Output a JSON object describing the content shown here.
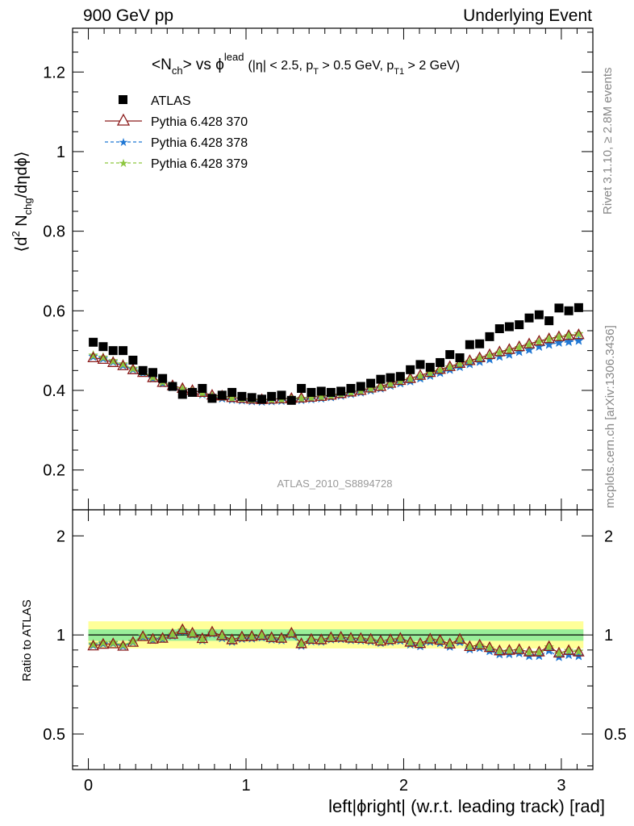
{
  "header": {
    "left": "900 GeV pp",
    "right": "Underlying Event"
  },
  "side_labels": {
    "rivet": "Rivet 3.1.10, ≥ 2.8M events",
    "mcplots": "mcplots.cern.ch [arXiv:1306.3436]"
  },
  "chart_data": [
    {
      "type": "scatter",
      "panel": "main",
      "title_main": "<N",
      "title_main_sub": "ch",
      "title_vs": "> vs ϕ",
      "title_sup": "lead",
      "title_cuts": "(|η| < 2.5, p",
      "title_cuts_sub1": "T",
      "title_cuts_mid": " > 0.5 GeV, p",
      "title_cuts_sub2": "T1",
      "title_cuts_end": " > 2 GeV)",
      "ylabel_a": "⟨d",
      "ylabel_sup": "2",
      "ylabel_b": " N",
      "ylabel_sub": "chg",
      "ylabel_c": "/dηdϕ⟩",
      "watermark": "ATLAS_2010_S8894728",
      "xlim": [
        -0.1,
        3.2
      ],
      "ylim": [
        0.1,
        1.31
      ],
      "yticks": [
        0.2,
        0.4,
        0.6,
        0.8,
        1,
        1.2
      ],
      "ytick_labels": [
        "0.2",
        "0.4",
        "0.6",
        "0.8",
        "1",
        "1.2"
      ],
      "legend_position": "top-left",
      "series": [
        {
          "name": "ATLAS",
          "marker": "square",
          "color": "#000000",
          "x": [
            0.031,
            0.094,
            0.157,
            0.22,
            0.283,
            0.346,
            0.409,
            0.471,
            0.534,
            0.597,
            0.66,
            0.723,
            0.785,
            0.848,
            0.911,
            0.974,
            1.037,
            1.1,
            1.162,
            1.225,
            1.288,
            1.351,
            1.414,
            1.477,
            1.539,
            1.602,
            1.665,
            1.728,
            1.791,
            1.854,
            1.916,
            1.979,
            2.042,
            2.105,
            2.168,
            2.231,
            2.293,
            2.356,
            2.419,
            2.482,
            2.545,
            2.608,
            2.67,
            2.733,
            2.796,
            2.859,
            2.922,
            2.985,
            3.047,
            3.11
          ],
          "y": [
            0.521,
            0.51,
            0.5,
            0.5,
            0.476,
            0.45,
            0.445,
            0.43,
            0.41,
            0.39,
            0.395,
            0.405,
            0.38,
            0.388,
            0.395,
            0.385,
            0.382,
            0.378,
            0.385,
            0.388,
            0.375,
            0.405,
            0.395,
            0.398,
            0.395,
            0.398,
            0.405,
            0.41,
            0.418,
            0.428,
            0.432,
            0.435,
            0.452,
            0.465,
            0.458,
            0.47,
            0.49,
            0.482,
            0.515,
            0.517,
            0.535,
            0.555,
            0.56,
            0.565,
            0.582,
            0.59,
            0.575,
            0.607,
            0.6,
            0.608
          ]
        },
        {
          "name": "Pythia 6.428 370",
          "marker": "triangle-open",
          "color": "#8b1a1a",
          "x": [
            0.031,
            0.094,
            0.157,
            0.22,
            0.283,
            0.346,
            0.409,
            0.471,
            0.534,
            0.597,
            0.66,
            0.723,
            0.785,
            0.848,
            0.911,
            0.974,
            1.037,
            1.1,
            1.162,
            1.225,
            1.288,
            1.351,
            1.414,
            1.477,
            1.539,
            1.602,
            1.665,
            1.728,
            1.791,
            1.854,
            1.916,
            1.979,
            2.042,
            2.105,
            2.168,
            2.231,
            2.293,
            2.356,
            2.419,
            2.482,
            2.545,
            2.608,
            2.67,
            2.733,
            2.796,
            2.859,
            2.922,
            2.985,
            3.047,
            3.11
          ],
          "y": [
            0.482,
            0.478,
            0.47,
            0.462,
            0.452,
            0.445,
            0.432,
            0.42,
            0.412,
            0.405,
            0.4,
            0.395,
            0.388,
            0.386,
            0.382,
            0.38,
            0.378,
            0.377,
            0.378,
            0.379,
            0.38,
            0.381,
            0.383,
            0.385,
            0.388,
            0.392,
            0.396,
            0.4,
            0.406,
            0.41,
            0.418,
            0.425,
            0.43,
            0.438,
            0.445,
            0.453,
            0.46,
            0.468,
            0.475,
            0.482,
            0.49,
            0.497,
            0.503,
            0.51,
            0.517,
            0.524,
            0.53,
            0.535,
            0.538,
            0.54
          ]
        },
        {
          "name": "Pythia 6.428 378",
          "marker": "star",
          "color": "#1f77d4",
          "x": [
            0.031,
            0.094,
            0.157,
            0.22,
            0.283,
            0.346,
            0.409,
            0.471,
            0.534,
            0.597,
            0.66,
            0.723,
            0.785,
            0.848,
            0.911,
            0.974,
            1.037,
            1.1,
            1.162,
            1.225,
            1.288,
            1.351,
            1.414,
            1.477,
            1.539,
            1.602,
            1.665,
            1.728,
            1.791,
            1.854,
            1.916,
            1.979,
            2.042,
            2.105,
            2.168,
            2.231,
            2.293,
            2.356,
            2.419,
            2.482,
            2.545,
            2.608,
            2.67,
            2.733,
            2.796,
            2.859,
            2.922,
            2.985,
            3.047,
            3.11
          ],
          "y": [
            0.485,
            0.48,
            0.472,
            0.463,
            0.453,
            0.444,
            0.43,
            0.418,
            0.408,
            0.4,
            0.395,
            0.39,
            0.383,
            0.38,
            0.377,
            0.375,
            0.373,
            0.372,
            0.373,
            0.374,
            0.375,
            0.376,
            0.378,
            0.38,
            0.383,
            0.387,
            0.391,
            0.395,
            0.4,
            0.405,
            0.412,
            0.418,
            0.423,
            0.43,
            0.437,
            0.444,
            0.452,
            0.459,
            0.466,
            0.472,
            0.478,
            0.485,
            0.49,
            0.497,
            0.502,
            0.51,
            0.515,
            0.52,
            0.522,
            0.525
          ]
        },
        {
          "name": "Pythia 6.428 379",
          "marker": "star",
          "color": "#8dc63f",
          "x": [
            0.031,
            0.094,
            0.157,
            0.22,
            0.283,
            0.346,
            0.409,
            0.471,
            0.534,
            0.597,
            0.66,
            0.723,
            0.785,
            0.848,
            0.911,
            0.974,
            1.037,
            1.1,
            1.162,
            1.225,
            1.288,
            1.351,
            1.414,
            1.477,
            1.539,
            1.602,
            1.665,
            1.728,
            1.791,
            1.854,
            1.916,
            1.979,
            2.042,
            2.105,
            2.168,
            2.231,
            2.293,
            2.356,
            2.419,
            2.482,
            2.545,
            2.608,
            2.67,
            2.733,
            2.796,
            2.859,
            2.922,
            2.985,
            3.047,
            3.11
          ],
          "y": [
            0.488,
            0.483,
            0.474,
            0.466,
            0.455,
            0.447,
            0.433,
            0.421,
            0.411,
            0.403,
            0.397,
            0.392,
            0.385,
            0.383,
            0.38,
            0.378,
            0.376,
            0.375,
            0.376,
            0.377,
            0.378,
            0.379,
            0.381,
            0.383,
            0.386,
            0.39,
            0.394,
            0.398,
            0.403,
            0.408,
            0.415,
            0.422,
            0.428,
            0.435,
            0.442,
            0.45,
            0.458,
            0.465,
            0.472,
            0.48,
            0.487,
            0.494,
            0.5,
            0.507,
            0.514,
            0.521,
            0.528,
            0.533,
            0.537,
            0.542
          ]
        }
      ]
    },
    {
      "type": "scatter",
      "panel": "ratio",
      "ylabel": "Ratio to ATLAS",
      "xlabel": "left|ϕright| (w.r.t. leading track) [rad]",
      "xlim": [
        -0.1,
        3.2
      ],
      "ylim": [
        0.39,
        2.4
      ],
      "log_y": true,
      "xticks": [
        0,
        1,
        2,
        3
      ],
      "xtick_labels": [
        "0",
        "1",
        "2",
        "3"
      ],
      "yticks": [
        0.5,
        1,
        2
      ],
      "ytick_labels": [
        "0.5",
        "1",
        "2"
      ],
      "band_inner": [
        0.96,
        1.04
      ],
      "band_outer": [
        0.91,
        1.1
      ],
      "series": [
        {
          "name": "Pythia 6.428 370",
          "y": [
            0.926,
            0.937,
            0.94,
            0.924,
            0.95,
            0.989,
            0.971,
            0.977,
            1.005,
            1.038,
            1.013,
            0.975,
            1.021,
            0.995,
            0.967,
            0.987,
            0.99,
            0.997,
            0.982,
            0.977,
            1.013,
            0.941,
            0.97,
            0.967,
            0.982,
            0.985,
            0.978,
            0.976,
            0.971,
            0.958,
            0.968,
            0.977,
            0.951,
            0.942,
            0.972,
            0.964,
            0.939,
            0.971,
            0.922,
            0.932,
            0.916,
            0.895,
            0.898,
            0.903,
            0.888,
            0.888,
            0.922,
            0.881,
            0.897,
            0.888
          ]
        },
        {
          "name": "Pythia 6.428 378",
          "y": [
            0.931,
            0.941,
            0.944,
            0.926,
            0.952,
            0.987,
            0.966,
            0.972,
            0.995,
            1.026,
            1.0,
            0.963,
            1.008,
            0.979,
            0.954,
            0.974,
            0.976,
            0.984,
            0.969,
            0.964,
            1.0,
            0.928,
            0.957,
            0.955,
            0.97,
            0.972,
            0.965,
            0.963,
            0.957,
            0.946,
            0.954,
            0.961,
            0.936,
            0.925,
            0.954,
            0.945,
            0.922,
            0.952,
            0.905,
            0.913,
            0.893,
            0.874,
            0.875,
            0.88,
            0.863,
            0.864,
            0.896,
            0.857,
            0.87,
            0.863
          ]
        },
        {
          "name": "Pythia 6.428 379",
          "y": [
            0.937,
            0.947,
            0.948,
            0.932,
            0.956,
            0.993,
            0.973,
            0.979,
            1.002,
            1.033,
            1.005,
            0.968,
            1.013,
            0.987,
            0.962,
            0.982,
            0.984,
            0.992,
            0.977,
            0.972,
            1.008,
            0.936,
            0.965,
            0.962,
            0.977,
            0.98,
            0.973,
            0.971,
            0.964,
            0.953,
            0.961,
            0.97,
            0.947,
            0.935,
            0.965,
            0.957,
            0.935,
            0.965,
            0.917,
            0.928,
            0.91,
            0.89,
            0.893,
            0.897,
            0.883,
            0.883,
            0.918,
            0.878,
            0.895,
            0.891
          ]
        }
      ]
    }
  ]
}
